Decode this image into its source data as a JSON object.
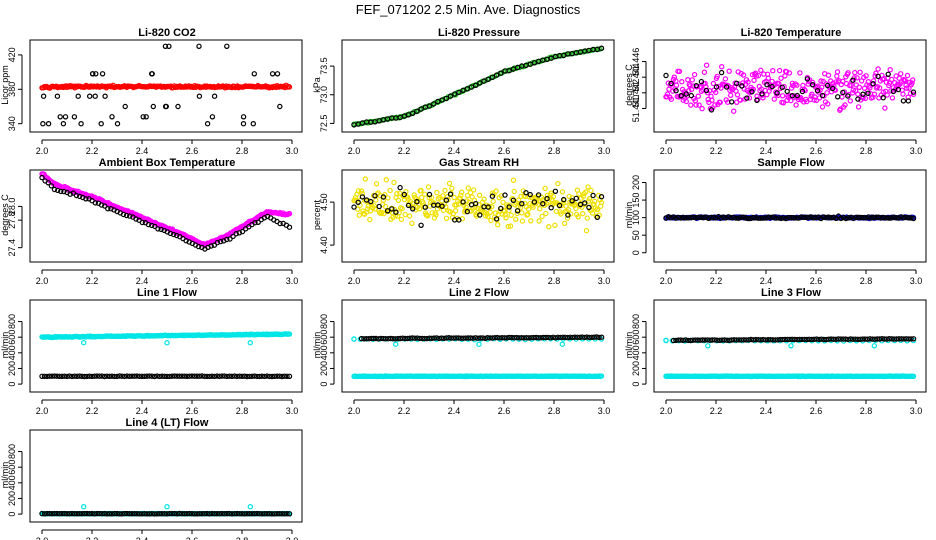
{
  "figure": {
    "title": "FEF_071202  2.5 Min. Ave. Diagnostics"
  },
  "chart_data": [
    {
      "id": "li820-co2",
      "type": "scatter",
      "title": "Li-820 CO2",
      "xlabel": "",
      "ylabel": "Licor ppm",
      "xlim": [
        2.0,
        3.0
      ],
      "xticks": [
        "2.0",
        "2.2",
        "2.4",
        "2.6",
        "2.8",
        "3.0"
      ],
      "ylim": [
        335,
        435
      ],
      "yticks": [
        {
          "value": 340,
          "label": "340"
        },
        {
          "value": 380,
          "label": "380"
        },
        {
          "value": 420,
          "label": "420"
        }
      ],
      "series": [
        {
          "name": "red",
          "color": "#ff0000",
          "style": "dense",
          "base": 383,
          "noise": 1.2
        },
        {
          "name": "black",
          "color": "#000000",
          "style": "levels",
          "count": 44,
          "levels": [
            340,
            348,
            360,
            372,
            398,
            430
          ],
          "seed": 11
        }
      ]
    },
    {
      "id": "li820-pressure",
      "type": "scatter",
      "title": "Li-820 Pressure",
      "xlabel": "",
      "ylabel": "kPa",
      "xlim": [
        2.0,
        3.0
      ],
      "xticks": [
        "2.0",
        "2.2",
        "2.4",
        "2.6",
        "2.8",
        "3.0"
      ],
      "ylim": [
        72.42,
        73.92
      ],
      "yticks": [
        {
          "value": 72.5,
          "label": "72.5"
        },
        {
          "value": 73.0,
          "label": "73.0"
        },
        {
          "value": 73.5,
          "label": "73.5"
        }
      ],
      "series": [
        {
          "name": "green",
          "color": "#1fb51f",
          "style": "curve",
          "curve": [
            [
              2.0,
              72.48
            ],
            [
              2.2,
              72.62
            ],
            [
              2.4,
              73.0
            ],
            [
              2.6,
              73.4
            ],
            [
              2.8,
              73.66
            ],
            [
              3.0,
              73.82
            ]
          ],
          "count": 140,
          "noise": 0.01
        },
        {
          "name": "black",
          "color": "#000000",
          "style": "curve",
          "curve": [
            [
              2.0,
              72.48
            ],
            [
              2.2,
              72.62
            ],
            [
              2.4,
              73.0
            ],
            [
              2.6,
              73.4
            ],
            [
              2.8,
              73.66
            ],
            [
              3.0,
              73.82
            ]
          ],
          "count": 60,
          "noise": 0.01
        }
      ]
    },
    {
      "id": "li820-temperature",
      "type": "scatter",
      "title": "Li-820 Temperature",
      "xlabel": "",
      "ylabel": "degrees C",
      "xlim": [
        2.0,
        3.0
      ],
      "xticks": [
        "2.0",
        "2.2",
        "2.4",
        "2.6",
        "2.8",
        "3.0"
      ],
      "ylim": [
        51.4375,
        51.4485
      ],
      "yticks": [
        {
          "value": 51.44,
          "label": "51.440"
        },
        {
          "value": 51.442,
          "label": "51.442"
        },
        {
          "value": 51.444,
          "label": "51.444"
        },
        {
          "value": 51.446,
          "label": "51.446"
        }
      ],
      "series": [
        {
          "name": "magenta",
          "color": "#ff00ff",
          "style": "noise",
          "count": 330,
          "base": 51.4425,
          "noise": 0.0025
        },
        {
          "name": "black",
          "color": "#000000",
          "style": "noise",
          "count": 50,
          "base": 51.4425,
          "noise": 0.0018
        }
      ]
    },
    {
      "id": "ambient-box-temperature",
      "type": "scatter",
      "title": "Ambient Box Temperature",
      "xlabel": "",
      "ylabel": "degrees C",
      "xlim": [
        2.0,
        3.0
      ],
      "xticks": [
        "2.0",
        "2.2",
        "2.4",
        "2.6",
        "2.8",
        "3.0"
      ],
      "ylim": [
        27.25,
        28.5
      ],
      "yticks": [
        {
          "value": 27.4,
          "label": "27.4"
        },
        {
          "value": 27.8,
          "label": "27.8"
        },
        {
          "value": 28.0,
          "label": "28.0"
        }
      ],
      "series": [
        {
          "name": "magenta",
          "color": "#ff00ff",
          "style": "curve",
          "curve": [
            [
              2.0,
              28.44
            ],
            [
              2.05,
              28.28
            ],
            [
              2.2,
              28.1
            ],
            [
              2.4,
              27.8
            ],
            [
              2.55,
              27.57
            ],
            [
              2.65,
              27.4
            ],
            [
              2.75,
              27.55
            ],
            [
              2.9,
              27.88
            ],
            [
              2.97,
              27.85
            ]
          ],
          "count": 240,
          "noise": 0.015,
          "offset": 0.04
        },
        {
          "name": "black",
          "color": "#000000",
          "style": "curve",
          "curve": [
            [
              2.0,
              28.44
            ],
            [
              2.05,
              28.28
            ],
            [
              2.2,
              28.1
            ],
            [
              2.4,
              27.8
            ],
            [
              2.55,
              27.57
            ],
            [
              2.65,
              27.4
            ],
            [
              2.75,
              27.55
            ],
            [
              2.9,
              27.88
            ],
            [
              2.99,
              27.72
            ]
          ],
          "count": 80,
          "noise": 0.015,
          "offset": -0.02
        }
      ]
    },
    {
      "id": "gas-stream-rh",
      "type": "scatter",
      "title": "Gas Stream RH",
      "xlabel": "",
      "ylabel": "percent",
      "xlim": [
        2.0,
        3.0
      ],
      "xticks": [
        "2.0",
        "2.2",
        "2.4",
        "2.6",
        "2.8",
        "3.0"
      ],
      "ylim": [
        4.37,
        4.57
      ],
      "yticks": [
        {
          "value": 4.4,
          "label": "4.40"
        },
        {
          "value": 4.5,
          "label": "4.50"
        }
      ],
      "series": [
        {
          "name": "yellow",
          "color": "#f0e000",
          "style": "noise",
          "count": 330,
          "base": 4.495,
          "noise": 0.045
        },
        {
          "name": "black",
          "color": "#000000",
          "style": "noise",
          "count": 60,
          "base": 4.495,
          "noise": 0.035
        }
      ]
    },
    {
      "id": "sample-flow",
      "type": "scatter",
      "title": "Sample Flow",
      "xlabel": "",
      "ylabel": "ml/min",
      "xlim": [
        2.0,
        3.0
      ],
      "xticks": [
        "2.0",
        "2.2",
        "2.4",
        "2.6",
        "2.8",
        "3.0"
      ],
      "ylim": [
        -15,
        230
      ],
      "yticks": [
        {
          "value": 0,
          "label": "0"
        },
        {
          "value": 50,
          "label": "50"
        },
        {
          "value": 100,
          "label": "100"
        },
        {
          "value": 150,
          "label": "150"
        },
        {
          "value": 200,
          "label": "200"
        }
      ],
      "series": [
        {
          "name": "blue",
          "color": "#1010c0",
          "style": "dense",
          "base": 100,
          "noise": 2
        },
        {
          "name": "black",
          "color": "#000000",
          "style": "noise",
          "count": 100,
          "base": 100,
          "noise": 3
        }
      ]
    },
    {
      "id": "line-1-flow",
      "type": "scatter",
      "title": "Line 1 Flow",
      "xlabel": "",
      "ylabel": "ml/min",
      "xlim": [
        2.0,
        3.0
      ],
      "xticks": [
        "2.0",
        "2.2",
        "2.4",
        "2.6",
        "2.8",
        "3.0"
      ],
      "ylim": [
        -50,
        1050
      ],
      "yticks": [
        {
          "value": 0,
          "label": "0"
        },
        {
          "value": 200,
          "label": "200"
        },
        {
          "value": 400,
          "label": "400"
        },
        {
          "value": 600,
          "label": "600"
        },
        {
          "value": 800,
          "label": "800"
        }
      ],
      "series": [
        {
          "name": "cyan",
          "color": "#00e5e5",
          "style": "dense",
          "base": 600,
          "slope": 40,
          "noise": 5
        },
        {
          "name": "cyan-dips",
          "color": "#00e5e5",
          "style": "points",
          "points": [
            [
              2.167,
              530
            ],
            [
              2.5,
              530
            ],
            [
              2.833,
              530
            ]
          ]
        },
        {
          "name": "black",
          "color": "#000000",
          "style": "noise",
          "count": 100,
          "base": 100,
          "noise": 3
        }
      ]
    },
    {
      "id": "line-2-flow",
      "type": "scatter",
      "title": "Line 2 Flow",
      "xlabel": "",
      "ylabel": "ml/min",
      "xlim": [
        2.0,
        3.0
      ],
      "xticks": [
        "2.0",
        "2.2",
        "2.4",
        "2.6",
        "2.8",
        "3.0"
      ],
      "ylim": [
        -50,
        1050
      ],
      "yticks": [
        {
          "value": 0,
          "label": "0"
        },
        {
          "value": 200,
          "label": "200"
        },
        {
          "value": 400,
          "label": "400"
        },
        {
          "value": 600,
          "label": "600"
        },
        {
          "value": 800,
          "label": "800"
        }
      ],
      "series": [
        {
          "name": "cyan",
          "color": "#00e5e5",
          "style": "dense",
          "base": 100,
          "noise": 3
        },
        {
          "name": "cyan-upper",
          "color": "#00e5e5",
          "style": "noise",
          "count": 40,
          "base": 575,
          "noise": 5
        },
        {
          "name": "cyan-dips",
          "color": "#00e5e5",
          "style": "points",
          "points": [
            [
              2.0,
              575
            ],
            [
              2.167,
              510
            ],
            [
              2.5,
              510
            ],
            [
              2.833,
              510
            ]
          ]
        },
        {
          "name": "black",
          "color": "#000000",
          "style": "noise",
          "count": 100,
          "base": 580,
          "slope": 20,
          "noise": 4,
          "start": 2.03
        }
      ]
    },
    {
      "id": "line-3-flow",
      "type": "scatter",
      "title": "Line 3 Flow",
      "xlabel": "",
      "ylabel": "ml/min",
      "xlim": [
        2.0,
        3.0
      ],
      "xticks": [
        "2.0",
        "2.2",
        "2.4",
        "2.6",
        "2.8",
        "3.0"
      ],
      "ylim": [
        -50,
        1050
      ],
      "yticks": [
        {
          "value": 0,
          "label": "0"
        },
        {
          "value": 200,
          "label": "200"
        },
        {
          "value": 400,
          "label": "400"
        },
        {
          "value": 600,
          "label": "600"
        },
        {
          "value": 800,
          "label": "800"
        }
      ],
      "series": [
        {
          "name": "cyan",
          "color": "#00e5e5",
          "style": "dense",
          "base": 100,
          "noise": 3
        },
        {
          "name": "cyan-upper",
          "color": "#00e5e5",
          "style": "noise",
          "count": 40,
          "base": 555,
          "noise": 5
        },
        {
          "name": "cyan-dips",
          "color": "#00e5e5",
          "style": "points",
          "points": [
            [
              2.0,
              560
            ],
            [
              2.167,
              490
            ],
            [
              2.5,
              490
            ],
            [
              2.833,
              490
            ]
          ]
        },
        {
          "name": "black",
          "color": "#000000",
          "style": "noise",
          "count": 100,
          "base": 560,
          "slope": 20,
          "noise": 4,
          "start": 2.03
        }
      ]
    },
    {
      "id": "line-4-lt-flow",
      "type": "scatter",
      "title": "Line 4 (LT) Flow",
      "xlabel": "",
      "ylabel": "ml/min",
      "xlim": [
        2.0,
        3.0
      ],
      "xticks": [
        "2.0",
        "2.2",
        "2.4",
        "2.6",
        "2.8",
        "3.0"
      ],
      "ylim": [
        -50,
        1050
      ],
      "yticks": [
        {
          "value": 0,
          "label": "0"
        },
        {
          "value": 200,
          "label": "200"
        },
        {
          "value": 400,
          "label": "400"
        },
        {
          "value": 600,
          "label": "600"
        },
        {
          "value": 800,
          "label": "800"
        }
      ],
      "series": [
        {
          "name": "cyan",
          "color": "#00e5e5",
          "style": "dense",
          "base": 5,
          "noise": 2
        },
        {
          "name": "cyan-spikes",
          "color": "#00e5e5",
          "style": "points",
          "points": [
            [
              2.167,
              95
            ],
            [
              2.5,
              95
            ],
            [
              2.833,
              95
            ]
          ]
        },
        {
          "name": "black",
          "color": "#000000",
          "style": "noise",
          "count": 100,
          "base": 5,
          "noise": 2
        }
      ]
    }
  ]
}
